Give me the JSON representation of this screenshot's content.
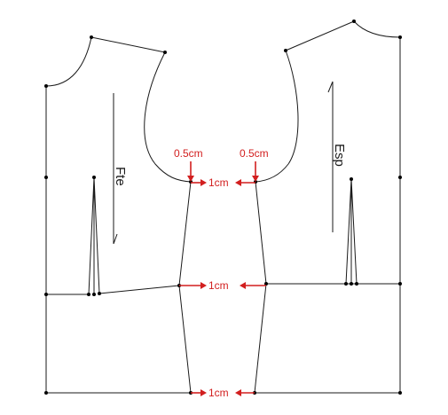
{
  "labels": {
    "front": "Fte",
    "back": "Esp",
    "offset_left": "0.5cm",
    "offset_right": "0.5cm",
    "gap_top": "1cm",
    "gap_middle": "1cm",
    "gap_bottom": "1cm"
  },
  "colors": {
    "outline": "#1a1a1a",
    "annotation": "#d21f1f"
  }
}
